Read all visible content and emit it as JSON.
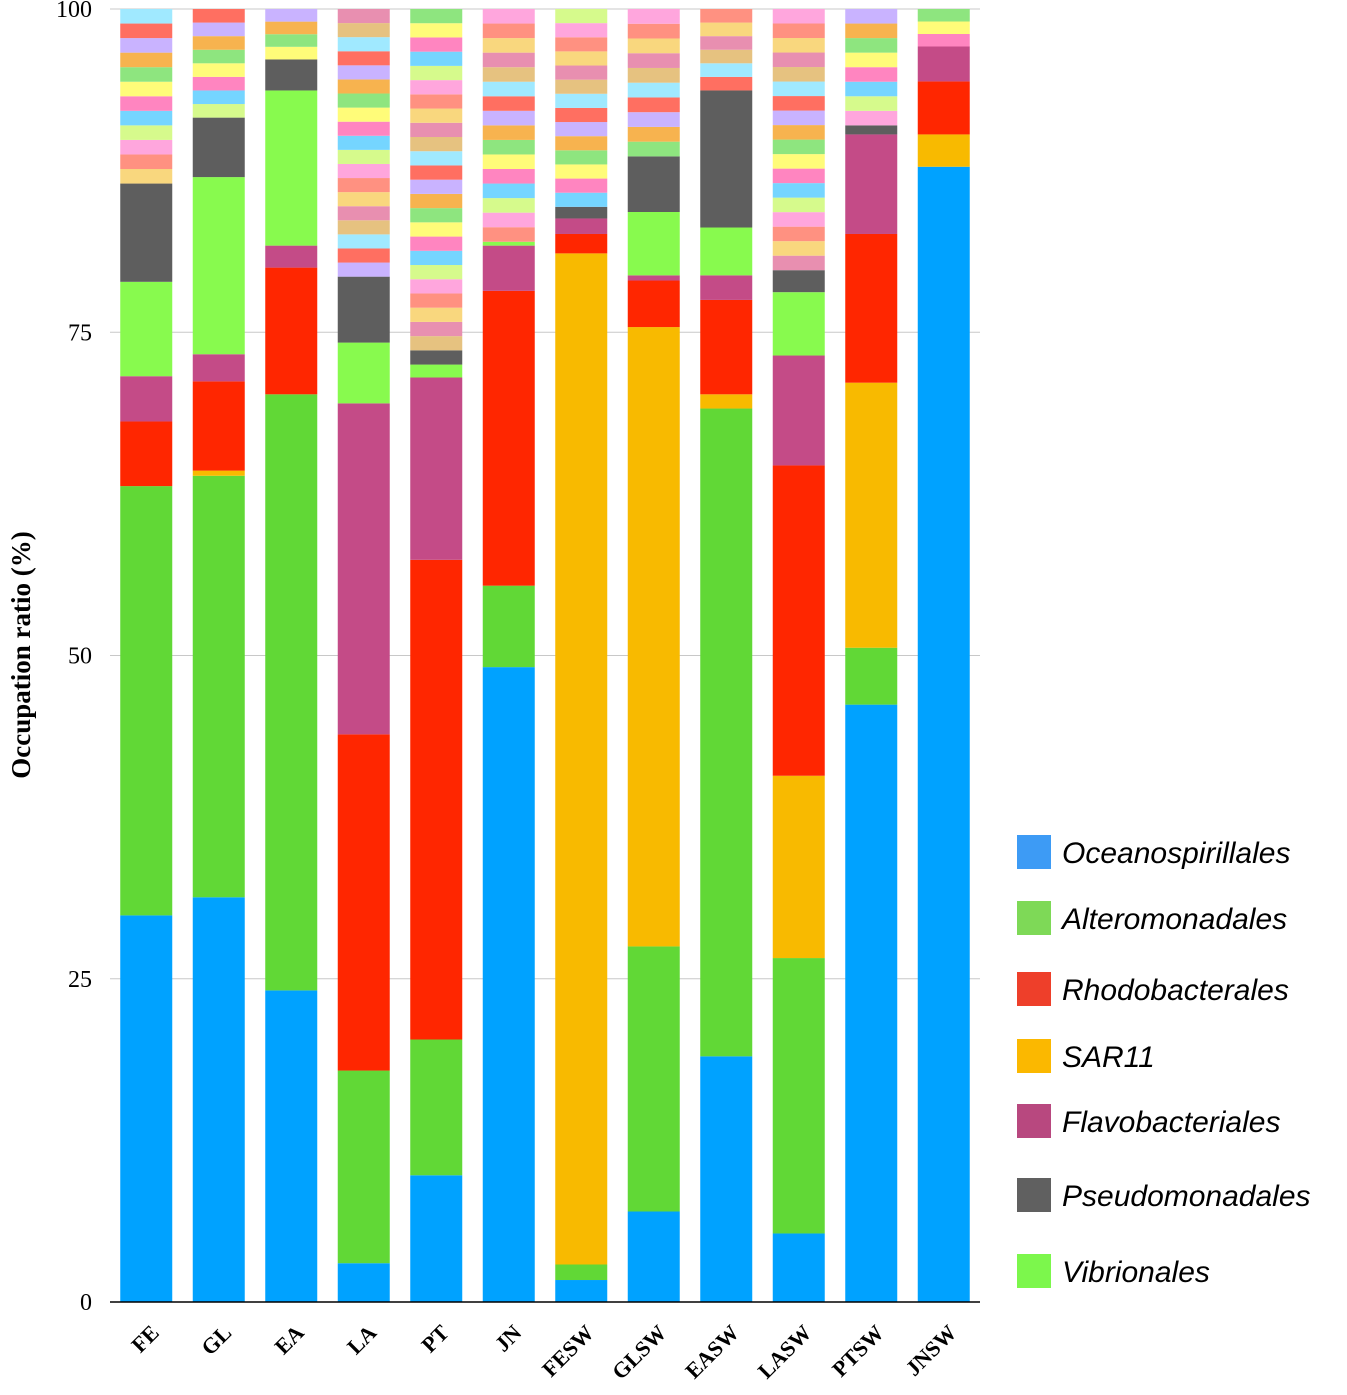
{
  "chart_data": {
    "type": "bar",
    "stacked": true,
    "title": "",
    "xlabel": "",
    "ylabel": "Occupation ratio (%)",
    "ylim": [
      0,
      100
    ],
    "yticks": [
      0,
      25,
      50,
      75,
      100
    ],
    "grid": true,
    "legend_position": "right-bottom",
    "categories": [
      "FE",
      "GL",
      "EA",
      "LA",
      "PT",
      "JN",
      "FESW",
      "GLSW",
      "EASW",
      "LASW",
      "PTSW",
      "JNSW"
    ],
    "series": [
      {
        "name": "Oceanospirillales",
        "color": "#00a2ff",
        "legend_color": "#3d9bf5",
        "values": [
          29.9,
          31.3,
          24.1,
          3.0,
          9.8,
          49.1,
          1.7,
          7.0,
          19.0,
          5.3,
          46.2,
          87.8
        ]
      },
      {
        "name": "Alteromonadales",
        "color": "#61d836",
        "legend_color": "#7ed957",
        "values": [
          33.2,
          32.6,
          46.1,
          14.9,
          10.5,
          6.3,
          1.2,
          20.5,
          50.1,
          21.3,
          4.4,
          0
        ]
      },
      {
        "name": "SAR11",
        "color": "#f8ba00",
        "legend_color": "#fbb800",
        "values": [
          0,
          0.4,
          0,
          0,
          0,
          0,
          78.2,
          47.9,
          1.1,
          14.1,
          20.5,
          2.5
        ]
      },
      {
        "name": "Rhodobacterales",
        "color": "#ff2600",
        "legend_color": "#ee3f2a",
        "values": [
          5.0,
          6.9,
          9.8,
          26.0,
          37.1,
          22.8,
          1.5,
          3.6,
          7.3,
          24.0,
          11.5,
          4.1
        ]
      },
      {
        "name": "Flavobacteriales",
        "color": "#c44b87",
        "legend_color": "#b8487f",
        "values": [
          3.5,
          2.1,
          1.7,
          25.6,
          14.1,
          3.5,
          1.2,
          0.4,
          1.9,
          8.5,
          7.7,
          2.7
        ]
      },
      {
        "name": "Vibrionales",
        "color": "#88fa4e",
        "legend_color": "#7cf74c",
        "values": [
          7.3,
          13.7,
          12.0,
          4.7,
          1.0,
          0.3,
          0,
          4.9,
          3.7,
          4.9,
          0,
          0
        ]
      },
      {
        "name": "Pseudomonadales",
        "color": "#5e5e5e",
        "legend_color": "#606060",
        "values": [
          7.6,
          4.6,
          2.4,
          5.1,
          1.1,
          0,
          0.9,
          4.3,
          10.6,
          1.7,
          0.7,
          0
        ]
      },
      {
        "name": "",
        "color": "multicolor",
        "values": [
          13.5,
          8.4,
          3.9,
          20.7,
          26.4,
          18.0,
          15.3,
          11.4,
          6.3,
          20.2,
          9.0,
          2.9
        ]
      }
    ],
    "legend_order": [
      "Oceanospirillales",
      "Alteromonadales",
      "Rhodobacterales",
      "SAR11",
      "Flavobacteriales",
      "Pseudomonadales",
      "Vibrionales"
    ]
  }
}
